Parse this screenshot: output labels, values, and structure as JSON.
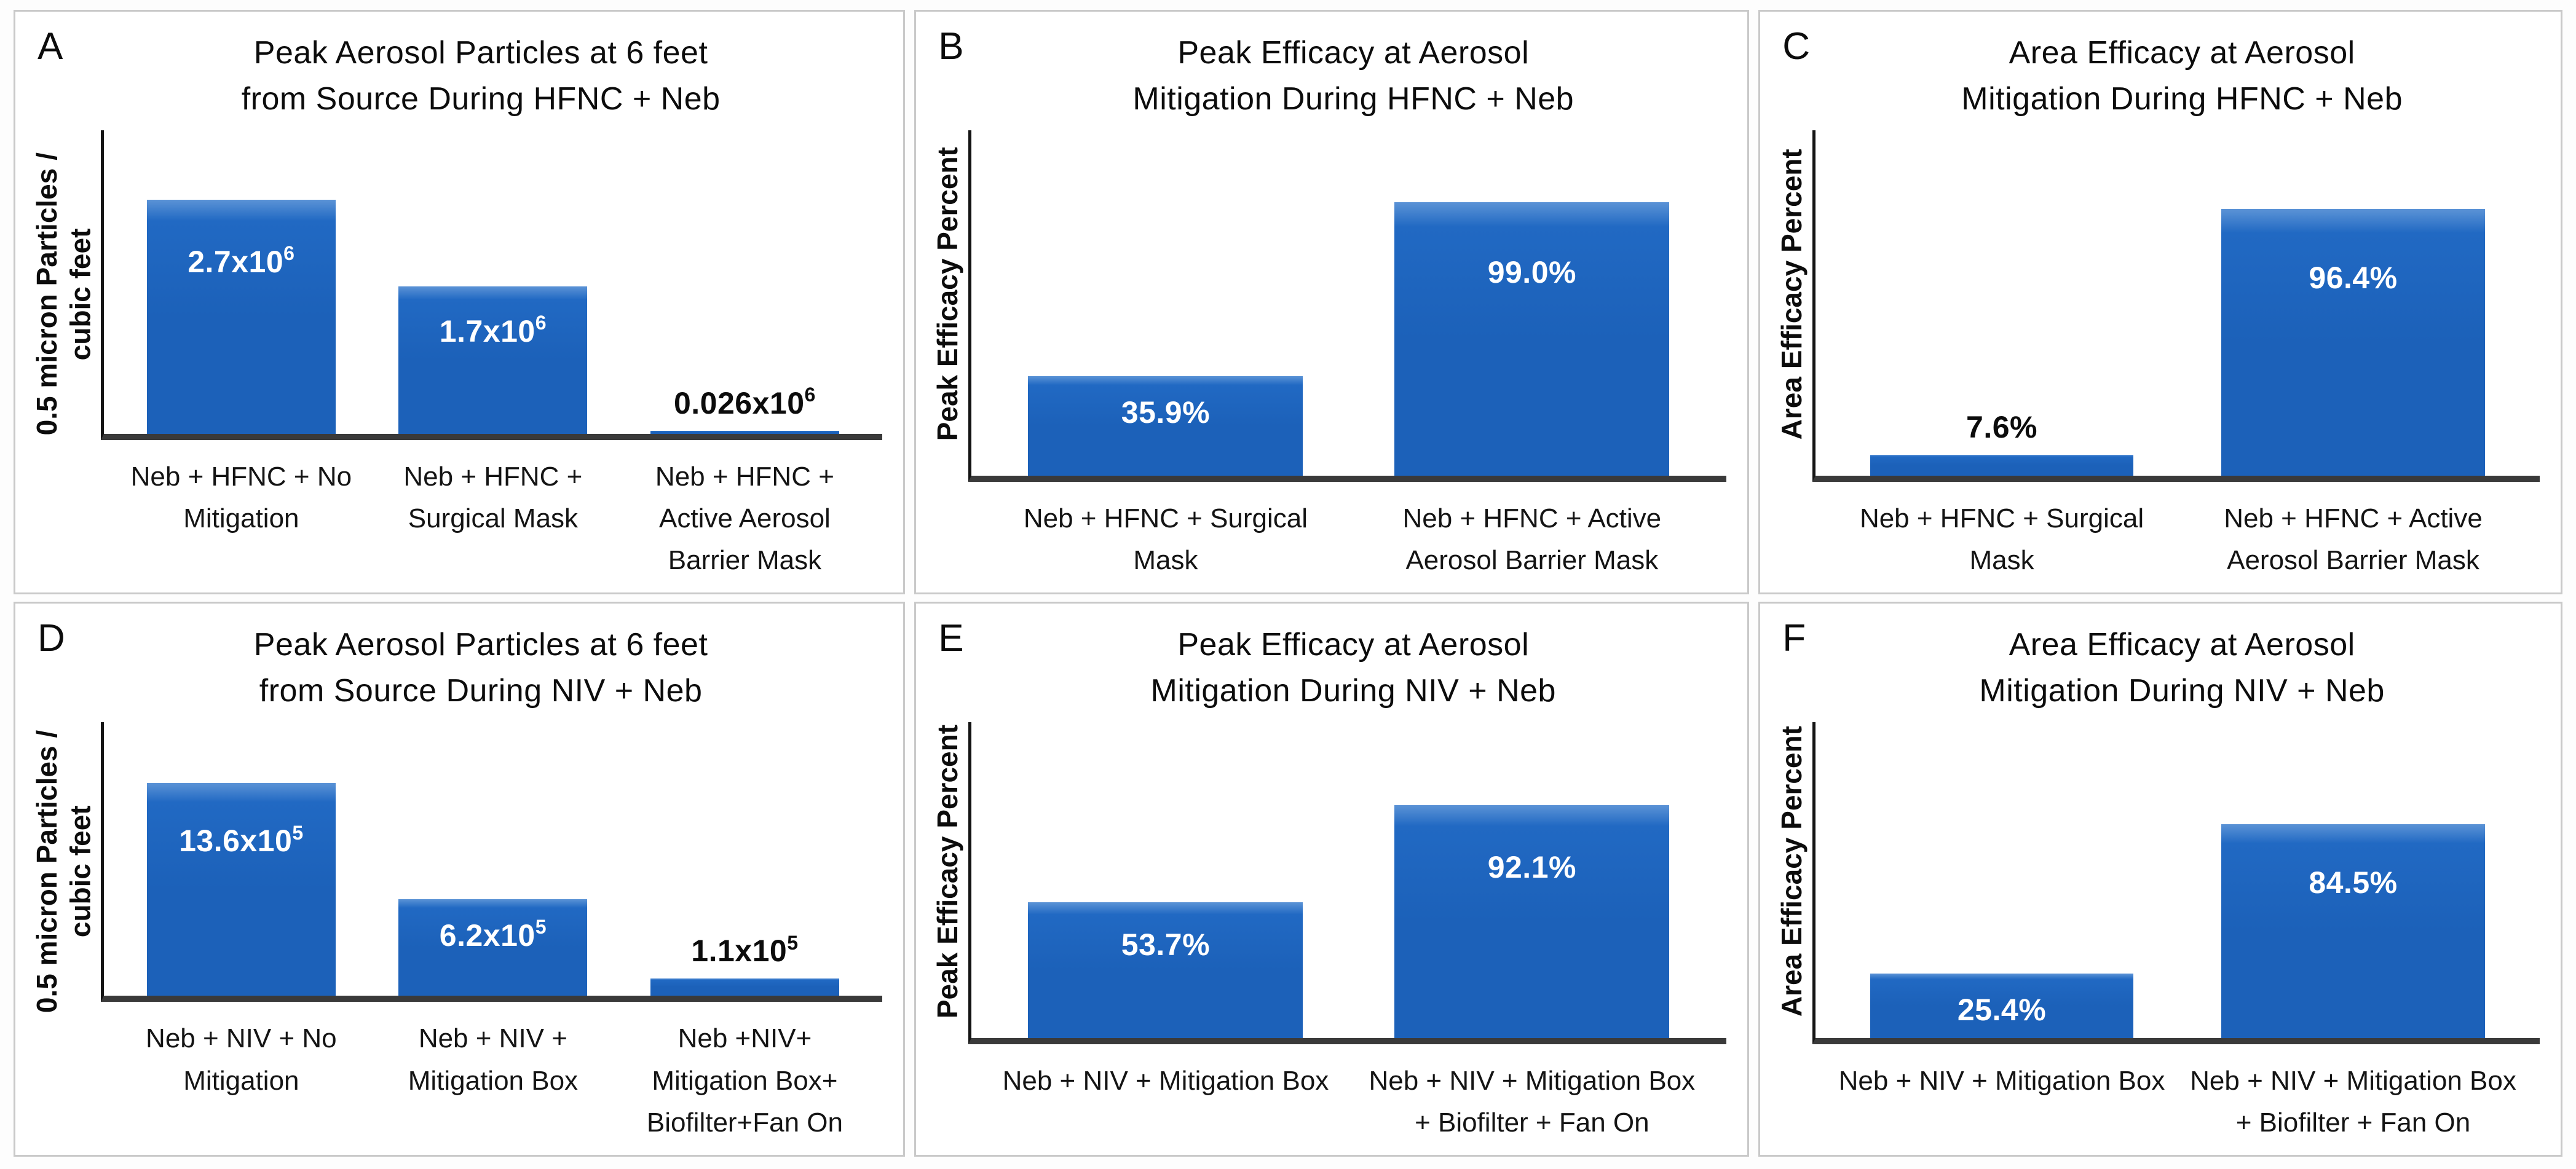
{
  "colors": {
    "bar_fill": "#1c61b9",
    "bar_fill_mid": "#2169c3",
    "bar_fill_top": "#5b93d6",
    "y_axis": "#141414",
    "x_axis": "#3a3a3a",
    "panel_border": "#c9c9c9",
    "label_on_bar": "#ffffff",
    "text": "#0c0c0c"
  },
  "chart_data": [
    {
      "panel": "A",
      "type": "bar",
      "title": "Peak Aerosol Particles at 6 feet from Source During HFNC + Neb",
      "title_lines": [
        "Peak Aerosol Particles at 6 feet",
        "from Source During HFNC + Neb"
      ],
      "ylabel": "0.5 micron Particles / cubic feet",
      "ylabel_lines": [
        "0.5 micron Particles /",
        "cubic feet"
      ],
      "categories": [
        "Neb + HFNC + No Mitigation",
        "Neb + HFNC + Surgical Mask",
        "Neb + HFNC + Active Aerosol Barrier Mask"
      ],
      "values": [
        2.7,
        1.7,
        0.026
      ],
      "value_scale": "x10^6",
      "ylim": [
        0,
        3.5
      ],
      "grid": false,
      "legend": null,
      "bar_labels": [
        {
          "text": "2.7x10",
          "sup": "6",
          "pos": "inside"
        },
        {
          "text": "1.7x10",
          "sup": "6",
          "pos": "inside"
        },
        {
          "text": "0.026x10",
          "sup": "6",
          "pos": "above"
        }
      ]
    },
    {
      "panel": "B",
      "type": "bar",
      "title": "Peak Efficacy at Aerosol Mitigation During HFNC + Neb",
      "title_lines": [
        "Peak Efficacy at Aerosol",
        "Mitigation During HFNC + Neb"
      ],
      "ylabel": "Peak Efficacy Percent",
      "ylabel_lines": [
        "Peak Efficacy Percent"
      ],
      "categories": [
        "Neb + HFNC + Surgical Mask",
        "Neb + HFNC + Active Aerosol Barrier Mask"
      ],
      "values": [
        35.9,
        99.0
      ],
      "value_scale": "percent",
      "ylim": [
        0,
        125
      ],
      "grid": false,
      "legend": null,
      "bar_labels": [
        {
          "text": "35.9%",
          "sup": "",
          "pos": "inside"
        },
        {
          "text": "99.0%",
          "sup": "",
          "pos": "inside"
        }
      ]
    },
    {
      "panel": "C",
      "type": "bar",
      "title": "Area Efficacy at Aerosol Mitigation During HFNC + Neb",
      "title_lines": [
        "Area Efficacy at Aerosol",
        "Mitigation During HFNC + Neb"
      ],
      "ylabel": "Area Efficacy Percent",
      "ylabel_lines": [
        "Area Efficacy Percent"
      ],
      "categories": [
        "Neb + HFNC + Surgical Mask",
        "Neb + HFNC + Active Aerosol Barrier Mask"
      ],
      "values": [
        7.6,
        96.4
      ],
      "value_scale": "percent",
      "ylim": [
        0,
        125
      ],
      "grid": false,
      "legend": null,
      "bar_labels": [
        {
          "text": "7.6%",
          "sup": "",
          "pos": "above"
        },
        {
          "text": "96.4%",
          "sup": "",
          "pos": "inside"
        }
      ]
    },
    {
      "panel": "D",
      "type": "bar",
      "title": "Peak Aerosol Particles at 6 feet from Source During NIV + Neb",
      "title_lines": [
        "Peak Aerosol Particles at 6 feet",
        "from Source During NIV + Neb"
      ],
      "ylabel": "0.5 micron Particles / cubic feet",
      "ylabel_lines": [
        "0.5 micron Particles /",
        "cubic feet"
      ],
      "categories": [
        "Neb + NIV + No Mitigation",
        "Neb + NIV + Mitigation Box",
        "Neb +NIV+ Mitigation Box+ Biofilter+Fan On"
      ],
      "values": [
        13.6,
        6.2,
        1.1
      ],
      "value_scale": "x10^5",
      "ylim": [
        0,
        17.5
      ],
      "grid": false,
      "legend": null,
      "bar_labels": [
        {
          "text": "13.6x10",
          "sup": "5",
          "pos": "inside"
        },
        {
          "text": "6.2x10",
          "sup": "5",
          "pos": "inside"
        },
        {
          "text": "1.1x10",
          "sup": "5",
          "pos": "above"
        }
      ]
    },
    {
      "panel": "E",
      "type": "bar",
      "title": "Peak Efficacy at Aerosol Mitigation During NIV + Neb",
      "title_lines": [
        "Peak Efficacy at Aerosol",
        "Mitigation During NIV + Neb"
      ],
      "ylabel": "Peak Efficacy Percent",
      "ylabel_lines": [
        "Peak Efficacy Percent"
      ],
      "categories": [
        "Neb + NIV + Mitigation Box",
        "Neb + NIV + Mitigation Box + Biofilter + Fan On"
      ],
      "values": [
        53.7,
        92.1
      ],
      "value_scale": "percent",
      "ylim": [
        0,
        125
      ],
      "grid": false,
      "legend": null,
      "bar_labels": [
        {
          "text": "53.7%",
          "sup": "",
          "pos": "inside"
        },
        {
          "text": "92.1%",
          "sup": "",
          "pos": "inside"
        }
      ]
    },
    {
      "panel": "F",
      "type": "bar",
      "title": "Area Efficacy at Aerosol Mitigation During NIV + Neb",
      "title_lines": [
        "Area Efficacy at Aerosol",
        "Mitigation During NIV + Neb"
      ],
      "ylabel": "Area Efficacy Percent",
      "ylabel_lines": [
        "Area Efficacy Percent"
      ],
      "categories": [
        "Neb + NIV + Mitigation Box",
        "Neb + NIV + Mitigation Box + Biofilter + Fan On"
      ],
      "values": [
        25.4,
        84.5
      ],
      "value_scale": "percent",
      "ylim": [
        0,
        125
      ],
      "grid": false,
      "legend": null,
      "bar_labels": [
        {
          "text": "25.4%",
          "sup": "",
          "pos": "inside"
        },
        {
          "text": "84.5%",
          "sup": "",
          "pos": "inside"
        }
      ]
    }
  ]
}
